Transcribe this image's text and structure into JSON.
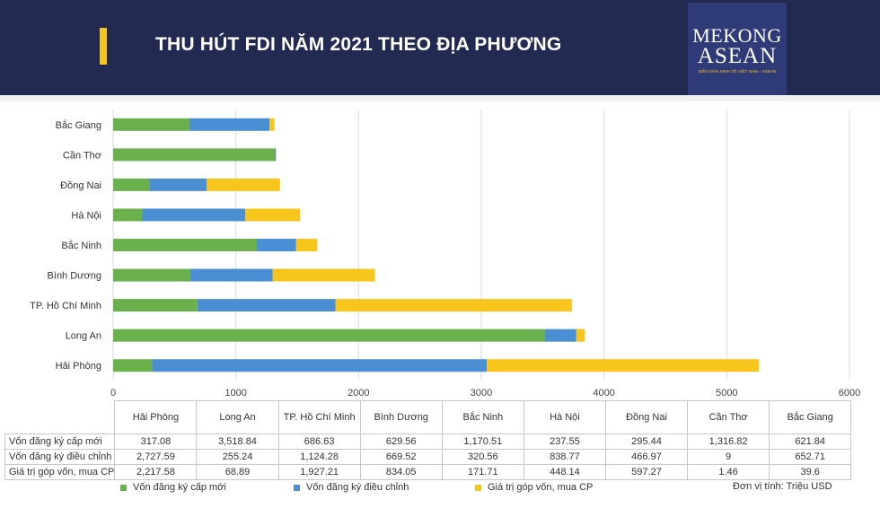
{
  "header": {
    "title": "THU HÚT FDI NĂM 2021 THEO ĐỊA PHƯƠNG"
  },
  "logo": {
    "line1": "MEKONG",
    "line2": "ASEAN",
    "tagline": "DIỄN ĐÀN KINH TẾ VIỆT NAM - ASEAN"
  },
  "colors": {
    "header_bg": "#232a52",
    "accent": "#f6c61f",
    "series_new": "#6ab04c",
    "series_adjust": "#4a8fd3",
    "series_contrib": "#f8c51c"
  },
  "chart_data": {
    "type": "bar",
    "orientation": "horizontal",
    "stacked": true,
    "title": "THU HÚT FDI NĂM 2021 THEO ĐỊA PHƯƠNG",
    "categories": [
      "Hải Phòng",
      "Long An",
      "TP. Hồ Chí Minh",
      "Bình Dương",
      "Bắc Ninh",
      "Hà Nội",
      "Đồng Nai",
      "Cần Thơ",
      "Bắc Giang"
    ],
    "series": [
      {
        "name": "Vốn đăng ký cấp mới",
        "values": [
          317.08,
          3518.84,
          686.63,
          629.56,
          1170.51,
          237.55,
          295.44,
          1316.82,
          621.84
        ],
        "labels": [
          "317.08",
          "3,518.84",
          "686.63",
          "629.56",
          "1,170.51",
          "237.55",
          "295.44",
          "1,316.82",
          "621.84"
        ]
      },
      {
        "name": "Vốn đăng ký điều chỉnh",
        "values": [
          2727.59,
          255.24,
          1124.28,
          669.52,
          320.56,
          838.77,
          466.97,
          9,
          652.71
        ],
        "labels": [
          "2,727.59",
          "255.24",
          "1,124.28",
          "669.52",
          "320.56",
          "838.77",
          "466.97",
          "9",
          "652.71"
        ]
      },
      {
        "name": "Giá trị góp vốn, mua CP",
        "values": [
          2217.58,
          68.89,
          1927.21,
          834.05,
          171.71,
          448.14,
          597.27,
          1.46,
          39.6
        ],
        "labels": [
          "2,217.58",
          "68.89",
          "1,927.21",
          "834.05",
          "171.71",
          "448.14",
          "597.27",
          "1.46",
          "39.6"
        ]
      }
    ],
    "xlim": [
      0,
      6000
    ],
    "xticks": [
      0,
      1000,
      2000,
      3000,
      4000,
      5000,
      6000
    ],
    "grid": true,
    "legend_position": "bottom"
  },
  "unit_note": "Đơn vị tính: Triệu USD"
}
